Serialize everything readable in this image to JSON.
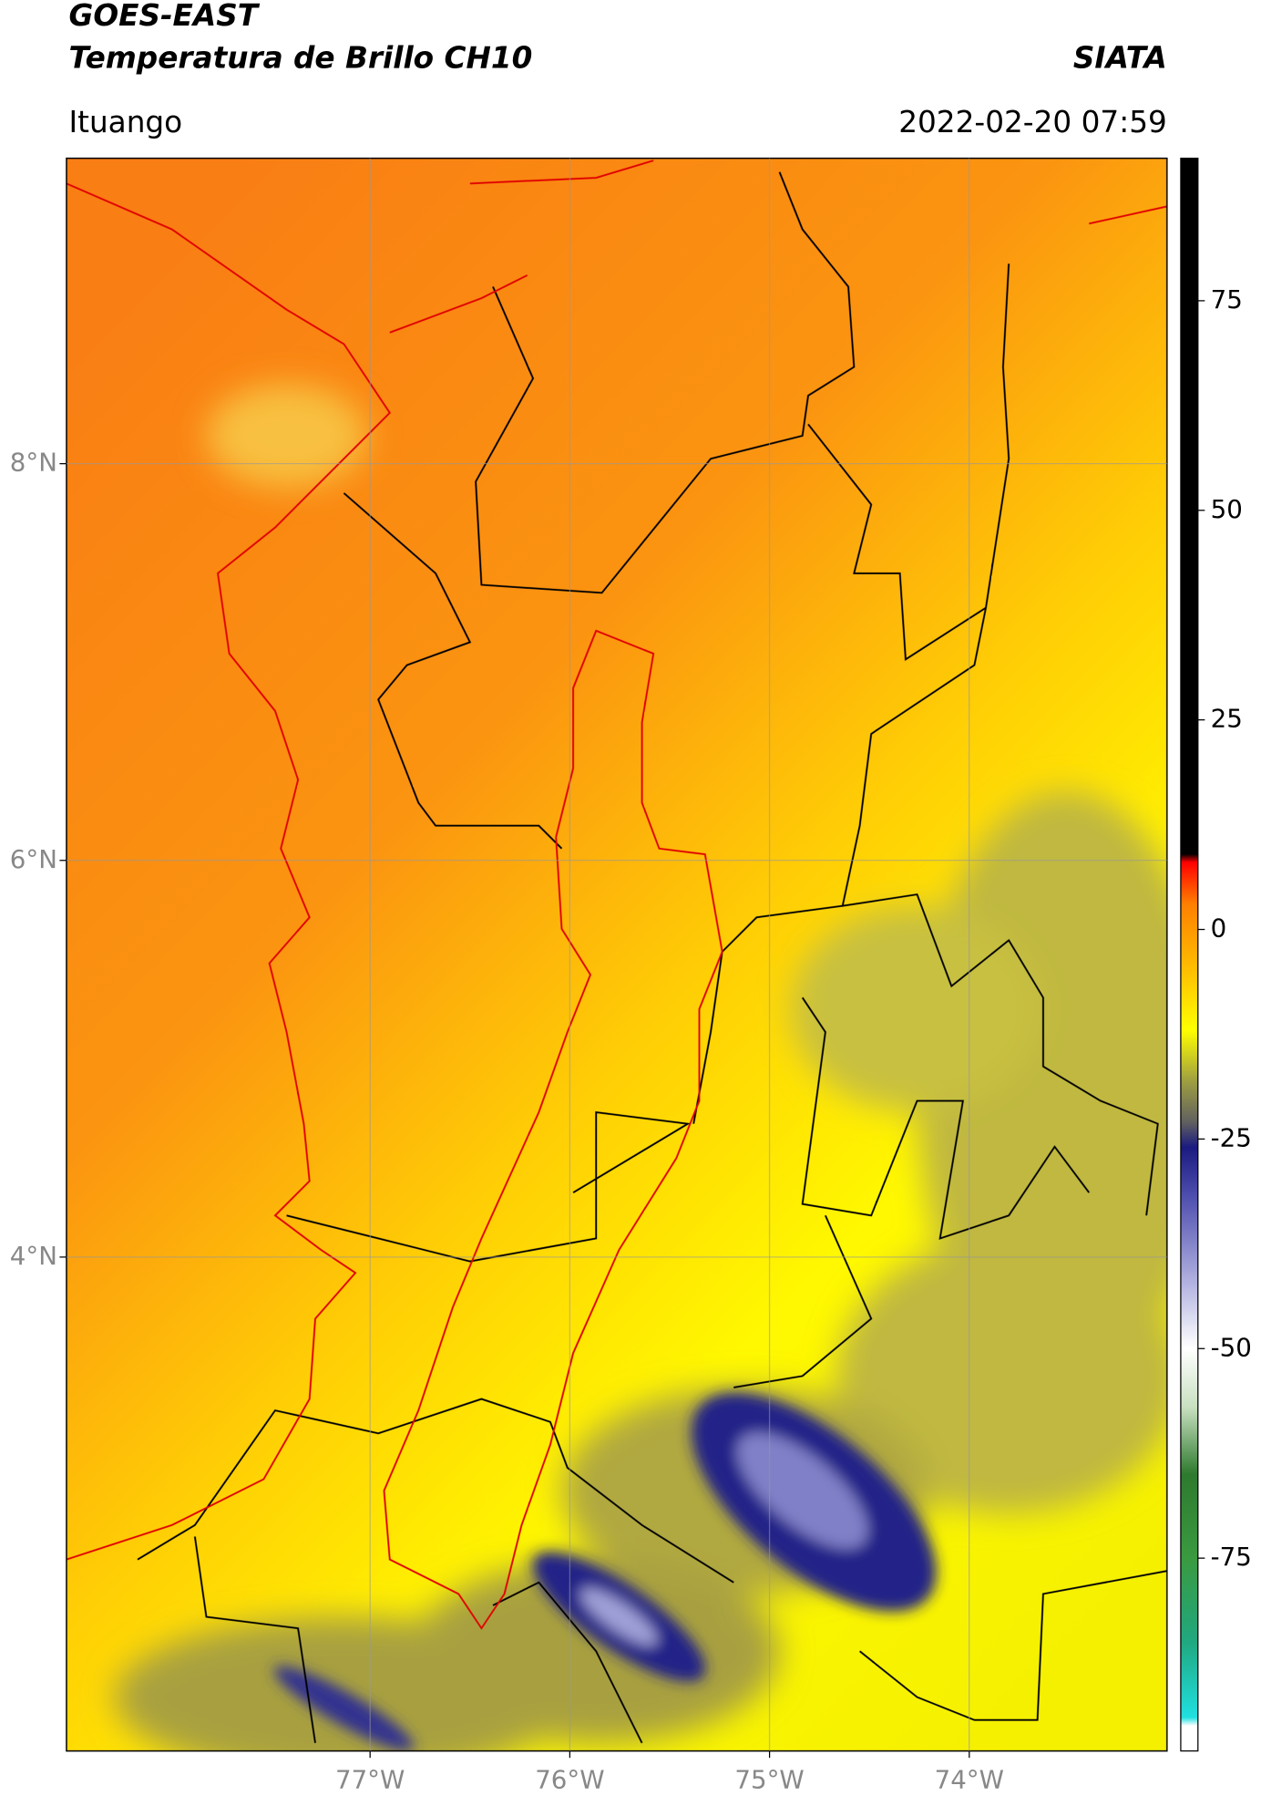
{
  "chart_data": {
    "type": "map",
    "title": "GOES-EAST",
    "subtitle": "Temperatura de Brillo CH10",
    "source": "SIATA",
    "region": "Ituango",
    "timestamp": "2022-02-20 07:59",
    "xlim": [
      -78.52,
      -73.01
    ],
    "ylim": [
      1.51,
      9.54
    ],
    "xticks": [
      {
        "value": -77,
        "label": "77°W"
      },
      {
        "value": -76,
        "label": "76°W"
      },
      {
        "value": -75,
        "label": "75°W"
      },
      {
        "value": -74,
        "label": "74°W"
      }
    ],
    "yticks": [
      {
        "value": 4,
        "label": "4°N"
      },
      {
        "value": 6,
        "label": "6°N"
      },
      {
        "value": 8,
        "label": "8°N"
      }
    ],
    "grid": true,
    "colorbar": {
      "lim": [
        -98,
        92
      ],
      "ticks": [
        -75,
        -50,
        -25,
        0,
        25,
        50,
        75
      ],
      "colorscale": [
        [
          -98,
          "#ffffff"
        ],
        [
          -95,
          "#ffffff"
        ],
        [
          -94,
          "#20e0e0"
        ],
        [
          -85,
          "#20a880"
        ],
        [
          -75,
          "#3a9a40"
        ],
        [
          -65,
          "#2e7a2e"
        ],
        [
          -57,
          "#c8e0c0"
        ],
        [
          -50,
          "#ffffff"
        ],
        [
          -42,
          "#b0b0e0"
        ],
        [
          -32,
          "#5050b0"
        ],
        [
          -26,
          "#1a1a80"
        ],
        [
          -23,
          "#606060"
        ],
        [
          -18,
          "#a0a040"
        ],
        [
          -12,
          "#ffff00"
        ],
        [
          -5,
          "#ffc000"
        ],
        [
          3,
          "#ff8000"
        ],
        [
          8,
          "#ff0000"
        ],
        [
          9,
          "#000000"
        ],
        [
          92,
          "#000000"
        ]
      ]
    }
  }
}
